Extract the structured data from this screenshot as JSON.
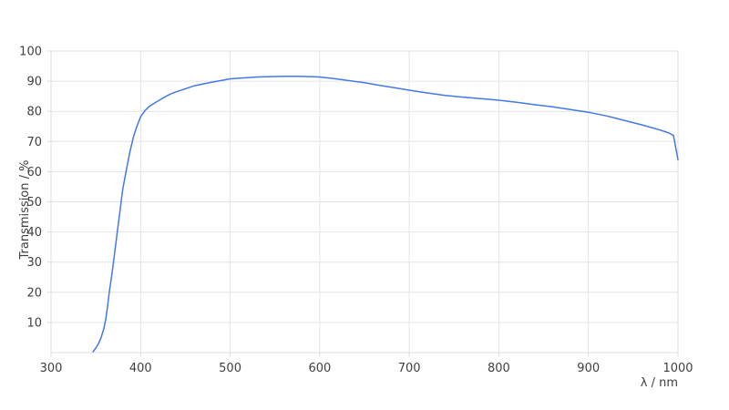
{
  "page": {
    "background": "#ffffff"
  },
  "chart_data": {
    "type": "line",
    "title": "",
    "xlabel": "λ / nm",
    "ylabel": "Transmission / %",
    "xlim": [
      300,
      1000
    ],
    "ylim": [
      0,
      100
    ],
    "x_ticks": [
      300,
      400,
      500,
      600,
      700,
      800,
      900,
      1000
    ],
    "y_ticks": [
      10,
      20,
      30,
      40,
      50,
      60,
      70,
      80,
      90,
      100
    ],
    "grid": true,
    "legend_position": "none",
    "series": [
      {
        "name": "transmission",
        "color": "#4179e8",
        "points": [
          [
            347,
            0.3
          ],
          [
            350,
            1.5
          ],
          [
            353,
            3
          ],
          [
            356,
            5
          ],
          [
            359,
            8
          ],
          [
            361,
            11
          ],
          [
            363,
            15
          ],
          [
            365,
            20
          ],
          [
            368,
            26
          ],
          [
            371,
            33
          ],
          [
            374,
            40
          ],
          [
            377,
            47
          ],
          [
            380,
            54
          ],
          [
            384,
            60.5
          ],
          [
            388,
            66.5
          ],
          [
            392,
            71.5
          ],
          [
            396,
            75.2
          ],
          [
            400,
            78.2
          ],
          [
            405,
            80.3
          ],
          [
            410,
            81.7
          ],
          [
            418,
            83.2
          ],
          [
            425,
            84.4
          ],
          [
            433,
            85.7
          ],
          [
            440,
            86.5
          ],
          [
            450,
            87.5
          ],
          [
            460,
            88.5
          ],
          [
            470,
            89.1
          ],
          [
            480,
            89.7
          ],
          [
            490,
            90.2
          ],
          [
            500,
            90.8
          ],
          [
            515,
            91.1
          ],
          [
            530,
            91.4
          ],
          [
            545,
            91.5
          ],
          [
            560,
            91.6
          ],
          [
            575,
            91.6
          ],
          [
            590,
            91.5
          ],
          [
            600,
            91.4
          ],
          [
            615,
            90.9
          ],
          [
            630,
            90.3
          ],
          [
            650,
            89.5
          ],
          [
            665,
            88.7
          ],
          [
            680,
            88.0
          ],
          [
            700,
            87.0
          ],
          [
            720,
            86.1
          ],
          [
            740,
            85.3
          ],
          [
            760,
            84.7
          ],
          [
            780,
            84.2
          ],
          [
            800,
            83.7
          ],
          [
            820,
            83.0
          ],
          [
            840,
            82.2
          ],
          [
            860,
            81.5
          ],
          [
            880,
            80.6
          ],
          [
            900,
            79.7
          ],
          [
            920,
            78.5
          ],
          [
            940,
            77.0
          ],
          [
            960,
            75.5
          ],
          [
            980,
            73.8
          ],
          [
            990,
            72.8
          ],
          [
            995,
            72.0
          ],
          [
            1000,
            64.0
          ]
        ]
      }
    ],
    "colors": {
      "line": "#4179e8",
      "grid": "#e4e4e4",
      "border": "#dcdcdc",
      "tick": "#dcdcdc",
      "tick_label": "#404040",
      "axis_title": "#404040"
    }
  }
}
